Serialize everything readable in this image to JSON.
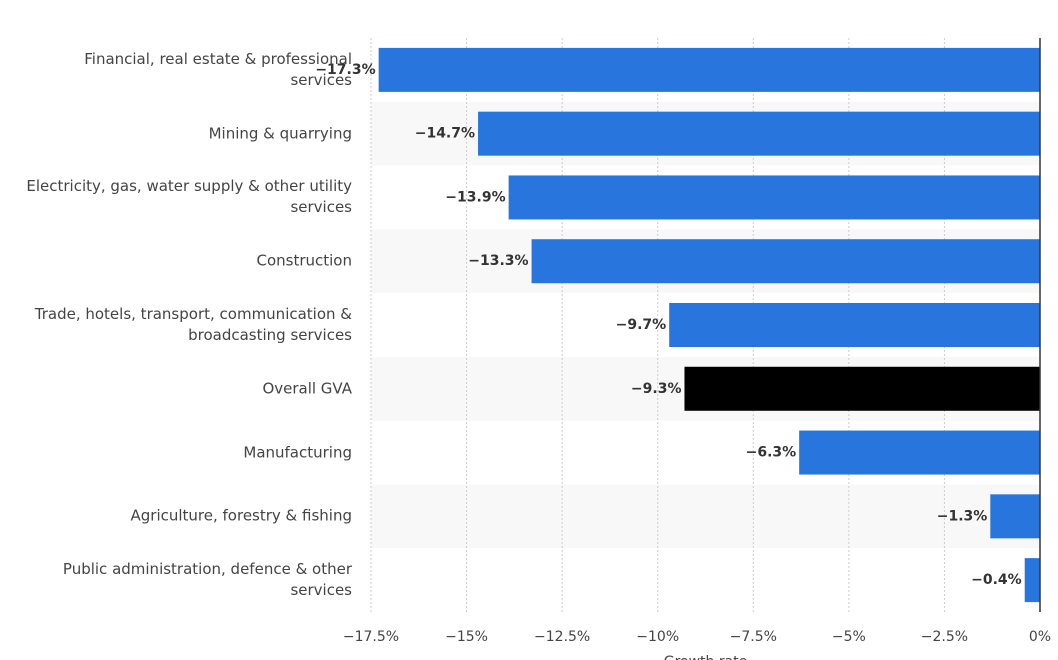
{
  "chart_data": {
    "type": "bar",
    "orientation": "horizontal",
    "x_label": "Growth rate",
    "categories": [
      "Financial, real estate & professional services",
      "Mining & quarrying",
      "Electricity, gas, water supply & other utility services",
      "Construction",
      "Trade, hotels, transport, communication & broadcasting services",
      "Overall GVA",
      "Manufacturing",
      "Agriculture, forestry & fishing",
      "Public administration, defence & other services"
    ],
    "values": [
      -17.3,
      -14.7,
      -13.9,
      -13.3,
      -9.7,
      -9.3,
      -6.3,
      -1.3,
      -0.4
    ],
    "value_labels": [
      "−17.3%",
      "−14.7%",
      "−13.9%",
      "−13.3%",
      "−9.7%",
      "−9.3%",
      "−6.3%",
      "−1.3%",
      "−0.4%"
    ],
    "colors": [
      "#2876dd",
      "#2876dd",
      "#2876dd",
      "#2876dd",
      "#2876dd",
      "#000000",
      "#2876dd",
      "#2876dd",
      "#2876dd"
    ],
    "xlim": [
      -17.5,
      0
    ],
    "xticks": [
      {
        "value": -17.5,
        "label": "−17.5%"
      },
      {
        "value": -15,
        "label": "−15%"
      },
      {
        "value": -12.5,
        "label": "−12.5%"
      },
      {
        "value": -10,
        "label": "−10%"
      },
      {
        "value": -7.5,
        "label": "−7.5%"
      },
      {
        "value": -5,
        "label": "−5%"
      },
      {
        "value": -2.5,
        "label": "−2.5%"
      },
      {
        "value": 0,
        "label": "0%"
      }
    ],
    "grid": true
  }
}
